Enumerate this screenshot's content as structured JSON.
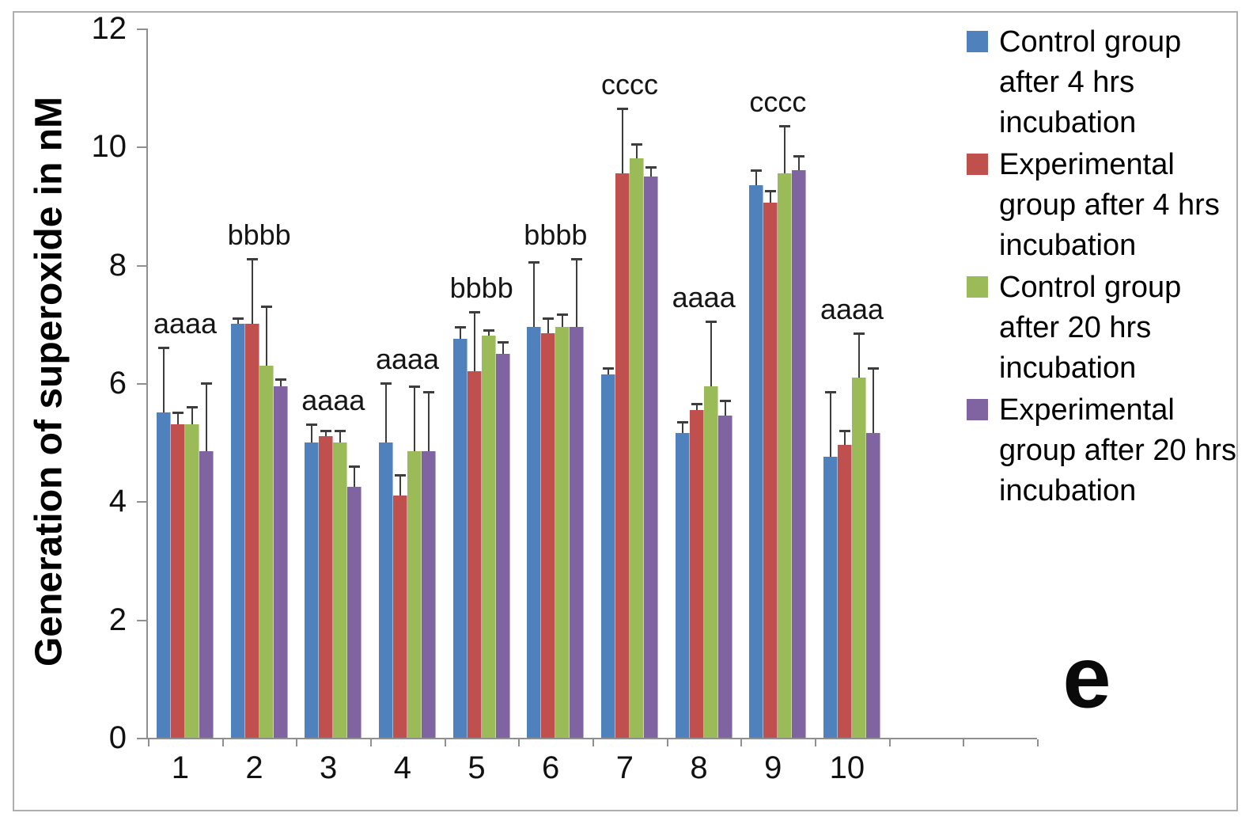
{
  "figure": {
    "panel_label": "e",
    "background_color": "#ffffff",
    "border_color": "#aeaeae"
  },
  "chart_data": {
    "type": "bar",
    "title": "",
    "xlabel": "",
    "ylabel": "Generation of superoxide in nM",
    "ylim": [
      0,
      12
    ],
    "yticks": [
      0,
      2,
      4,
      6,
      8,
      10,
      12
    ],
    "grid": false,
    "legend_position": "right",
    "axis_color": "#8f8f8f",
    "error_bar_color": "#3d3d3d",
    "categories": [
      "1",
      "2",
      "3",
      "4",
      "5",
      "6",
      "7",
      "8",
      "9",
      "10"
    ],
    "group_annotations": [
      "aaaa",
      "bbbb",
      "aaaa",
      "aaaa",
      "bbbb",
      "bbbb",
      "cccc",
      "aaaa",
      "cccc",
      "aaaa"
    ],
    "series": [
      {
        "name": "Control group after 4 hrs incubation",
        "color": "#4F81BD",
        "values": [
          5.5,
          7.0,
          5.0,
          5.0,
          6.75,
          6.95,
          6.15,
          5.15,
          9.35,
          4.75
        ],
        "errors_plus": [
          1.1,
          0.1,
          0.3,
          1.0,
          0.2,
          1.1,
          0.1,
          0.2,
          0.25,
          1.1
        ]
      },
      {
        "name": "Experimental group after 4 hrs incubation",
        "color": "#C0504D",
        "values": [
          5.3,
          7.0,
          5.1,
          4.1,
          6.2,
          6.85,
          9.55,
          5.55,
          9.05,
          4.95
        ],
        "errors_plus": [
          0.2,
          1.1,
          0.1,
          0.35,
          1.0,
          0.25,
          1.1,
          0.1,
          0.2,
          0.25
        ]
      },
      {
        "name": "Control group after 20 hrs incubation",
        "color": "#9BBB59",
        "values": [
          5.3,
          6.3,
          5.0,
          4.85,
          6.8,
          6.95,
          9.8,
          5.95,
          9.55,
          6.1
        ],
        "errors_plus": [
          0.3,
          1.0,
          0.2,
          1.1,
          0.1,
          0.22,
          0.25,
          1.1,
          0.8,
          0.75
        ]
      },
      {
        "name": "Experimental group after 20 hrs incubation",
        "color": "#8064A2",
        "values": [
          4.85,
          5.95,
          4.25,
          4.85,
          6.5,
          6.95,
          9.5,
          5.45,
          9.6,
          5.15
        ],
        "errors_plus": [
          1.15,
          0.12,
          0.35,
          1.0,
          0.2,
          1.15,
          0.15,
          0.25,
          0.25,
          1.1
        ]
      }
    ]
  }
}
